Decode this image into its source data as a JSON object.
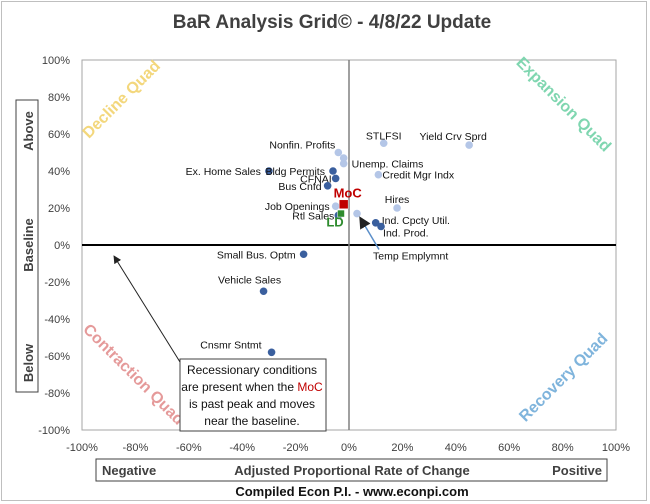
{
  "chart_data": {
    "type": "scatter",
    "title": "BaR Analysis Grid© - 4/8/22 Update",
    "x_range": [
      -100,
      100
    ],
    "y_range": [
      -100,
      100
    ],
    "x_ticks": [
      "-100%",
      "-80%",
      "-60%",
      "-40%",
      "-20%",
      "0%",
      "20%",
      "40%",
      "60%",
      "80%",
      "100%"
    ],
    "y_ticks": [
      "100%",
      "80%",
      "60%",
      "40%",
      "20%",
      "0%",
      "-20%",
      "-40%",
      "-60%",
      "-80%",
      "-100%"
    ],
    "xlabel": {
      "left": "Negative",
      "center": "Adjusted Proportional Rate of Change",
      "right": "Positive"
    },
    "ylabel": {
      "top": "Above",
      "middle": "Baseline",
      "bottom": "Below"
    },
    "quadrants": {
      "top_left": "Decline Quad",
      "top_right": "Expansion Quad",
      "bottom_left": "Contraction Quad",
      "bottom_right": "Recovery Quad"
    },
    "colors": {
      "dark_point": "#3a5f9e",
      "light_point": "#b4c6e7",
      "moc": "#c00000",
      "ld": "#2e8b2e",
      "decline": "#f3d77c",
      "expansion": "#7fd6b0",
      "contraction": "#e59a9a",
      "recovery": "#7fb4dc"
    },
    "points": [
      {
        "label": "Nonfin. Profits",
        "x": -4,
        "y": 50,
        "shade": "light"
      },
      {
        "label": "",
        "x": -2,
        "y": 47,
        "shade": "light"
      },
      {
        "label": "STLFSI",
        "x": 13,
        "y": 55,
        "shade": "light"
      },
      {
        "label": "Yield Crv Sprd",
        "x": 45,
        "y": 54,
        "shade": "light"
      },
      {
        "label": "Ex. Home Sales",
        "x": -30,
        "y": 40,
        "shade": "dark"
      },
      {
        "label": "Bldg Permits",
        "x": -6,
        "y": 40,
        "shade": "dark"
      },
      {
        "label": "Unemp. Claims",
        "x": -2,
        "y": 44,
        "shade": "light"
      },
      {
        "label": "Credit Mgr Indx",
        "x": 11,
        "y": 38,
        "shade": "light"
      },
      {
        "label": "CFNAI",
        "x": -5,
        "y": 36,
        "shade": "dark"
      },
      {
        "label": "Bus Cnfd",
        "x": -8,
        "y": 32,
        "shade": "dark"
      },
      {
        "label": "Job Openings",
        "x": -5,
        "y": 21,
        "shade": "light"
      },
      {
        "label": "Hires",
        "x": 18,
        "y": 20,
        "shade": "light"
      },
      {
        "label": "Rtl Sales",
        "x": -4,
        "y": 16,
        "shade": "dark"
      },
      {
        "label": "Ind. Cpcty Util.",
        "x": 10,
        "y": 12,
        "shade": "dark"
      },
      {
        "label": "Ind. Prod.",
        "x": 12,
        "y": 10,
        "shade": "dark"
      },
      {
        "label": "Temp Emplymnt",
        "x": 3,
        "y": 17,
        "shade": "light"
      },
      {
        "label": "Small Bus. Optm",
        "x": -17,
        "y": -5,
        "shade": "dark"
      },
      {
        "label": "Vehicle Sales",
        "x": -32,
        "y": -25,
        "shade": "dark"
      },
      {
        "label": "Cnsmr Sntmt",
        "x": -29,
        "y": -58,
        "shade": "dark"
      }
    ],
    "markers": [
      {
        "label": "MoC",
        "x": -2,
        "y": 22
      },
      {
        "label": "LD",
        "x": -3,
        "y": 17
      }
    ],
    "annotations": [
      {
        "text": "Recessionary conditions",
        "arrow_to": {
          "x": -88,
          "y": -6
        }
      },
      {
        "text": "are present when the ",
        "highlight": "MoC"
      },
      {
        "text": "is past peak and moves"
      },
      {
        "text": "near the baseline."
      }
    ],
    "footer": "Compiled Econ P.I. - www.econpi.com"
  }
}
